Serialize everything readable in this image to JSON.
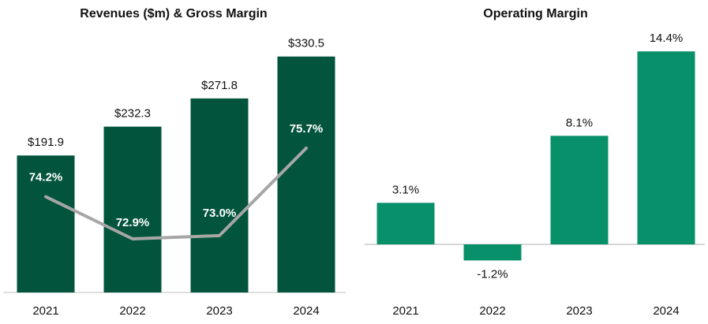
{
  "chart_data": [
    {
      "type": "bar",
      "title": "Revenues ($m) & Gross Margin",
      "categories": [
        "2021",
        "2022",
        "2023",
        "2024"
      ],
      "series": [
        {
          "name": "Revenues ($m)",
          "type": "bar",
          "values": [
            191.9,
            232.3,
            271.8,
            330.5
          ],
          "labels": [
            "$191.9",
            "$232.3",
            "$271.8",
            "$330.5"
          ]
        },
        {
          "name": "Gross Margin",
          "type": "line",
          "values": [
            74.2,
            72.9,
            73.0,
            75.7
          ],
          "labels": [
            "74.2%",
            "72.9%",
            "73.0%",
            "75.7%"
          ]
        }
      ],
      "ylim": [
        0,
        360
      ],
      "xlabel": "",
      "ylabel": "",
      "colors": {
        "bar": "#03543c",
        "line": "#a6a6a6",
        "line_labels": "#ffffff"
      }
    },
    {
      "type": "bar",
      "title": "Operating Margin",
      "categories": [
        "2021",
        "2022",
        "2023",
        "2024"
      ],
      "values": [
        3.1,
        -1.2,
        8.1,
        14.4
      ],
      "labels": [
        "3.1%",
        "-1.2%",
        "8.1%",
        "14.4%"
      ],
      "ylim": [
        -3,
        16
      ],
      "xlabel": "",
      "ylabel": "",
      "colors": {
        "bar": "#07906a",
        "zero_line": "#c8c8c8"
      }
    }
  ]
}
